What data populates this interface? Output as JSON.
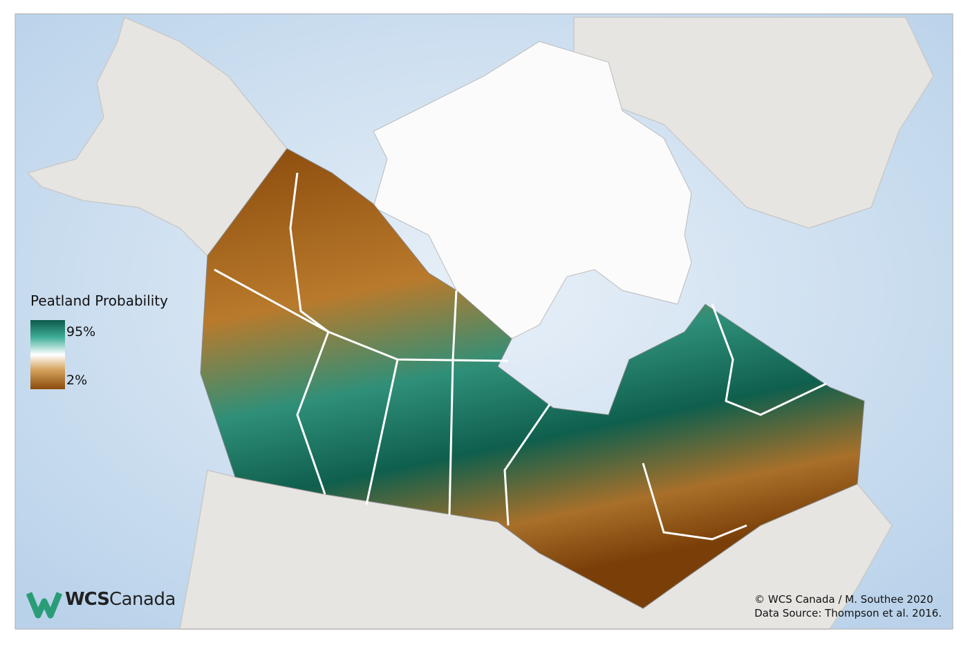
{
  "legend": {
    "title": "Peatland Probability",
    "labels": [
      "95%",
      "2%"
    ]
  },
  "logo": {
    "wcs": "WCS",
    "canada": "Canada"
  },
  "credits": [
    "© WCS Canada / M. Southee 2020",
    "Data Source: Thompson et al. 2016."
  ]
}
